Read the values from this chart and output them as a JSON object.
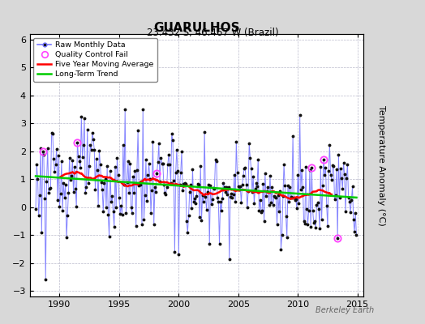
{
  "title": "GUARULHOS",
  "subtitle": "23.432 S, 46.467 W (Brazil)",
  "ylabel": "Temperature Anomaly (°C)",
  "xlim": [
    1987.5,
    2015.5
  ],
  "ylim": [
    -3.2,
    6.2
  ],
  "yticks": [
    -3,
    -2,
    -1,
    0,
    1,
    2,
    3,
    4,
    5,
    6
  ],
  "xticks": [
    1990,
    1995,
    2000,
    2005,
    2010,
    2015
  ],
  "background_color": "#d8d8d8",
  "plot_bg_color": "#ffffff",
  "grid_color": "#bbbbcc",
  "watermark": "Berkeley Earth",
  "raw_color": "#7777ff",
  "dot_color": "#111111",
  "ma_color": "#ff0000",
  "trend_color": "#00cc00",
  "qc_color": "#ff44ff",
  "seed": 123
}
